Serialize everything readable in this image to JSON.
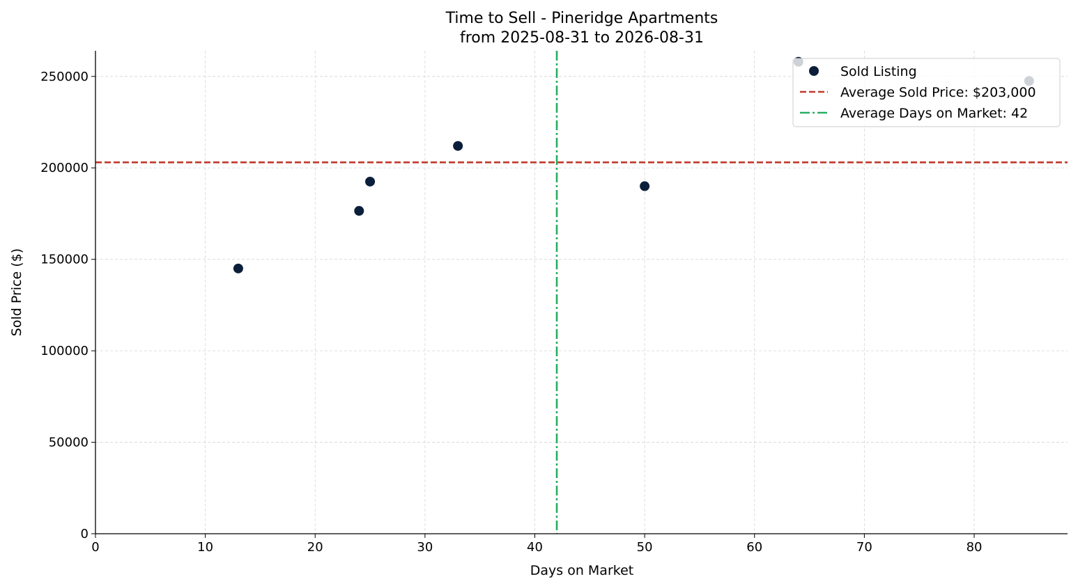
{
  "chart_data": {
    "type": "scatter",
    "title": "Time to Sell - Pineridge Apartments",
    "subtitle": "from 2025-08-31 to 2026-08-31",
    "xlabel": "Days on Market",
    "ylabel": "Sold Price ($)",
    "xlim": [
      0,
      88.5
    ],
    "ylim": [
      0,
      264000
    ],
    "xticks": [
      0,
      10,
      20,
      30,
      40,
      50,
      60,
      70,
      80
    ],
    "yticks": [
      0,
      50000,
      100000,
      150000,
      200000,
      250000
    ],
    "grid": true,
    "legend_position": "top-right",
    "series": [
      {
        "name": "Sold Listing",
        "color": "#0b1f3a",
        "points": [
          {
            "x": 13,
            "y": 145000
          },
          {
            "x": 24,
            "y": 176500
          },
          {
            "x": 25,
            "y": 192500
          },
          {
            "x": 33,
            "y": 212000
          },
          {
            "x": 50,
            "y": 190000
          },
          {
            "x": 64,
            "y": 258000
          },
          {
            "x": 85,
            "y": 247500
          }
        ]
      }
    ],
    "reference_lines": [
      {
        "name": "Average Sold Price: $203,000",
        "orientation": "horizontal",
        "value": 203000,
        "color": "#c0392b",
        "style": "dashed"
      },
      {
        "name": "Average Days on Market: 42",
        "orientation": "vertical",
        "value": 42,
        "color": "#27ae60",
        "style": "dashdot"
      }
    ]
  }
}
